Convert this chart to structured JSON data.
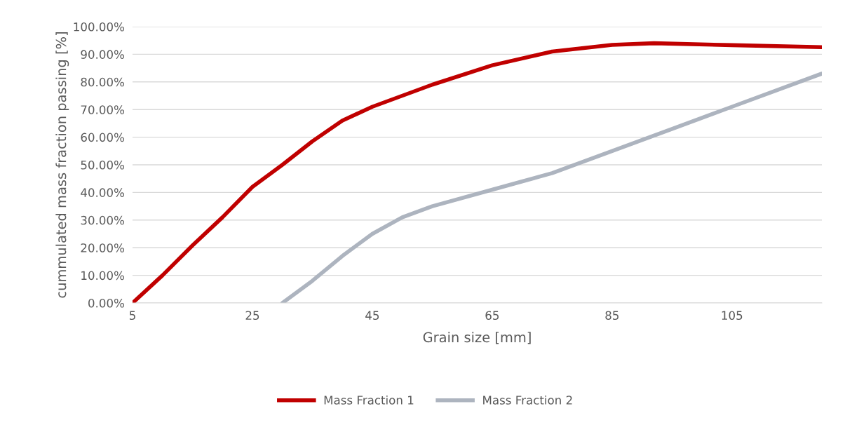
{
  "chart_data": {
    "type": "line",
    "xlabel": "Grain size [mm]",
    "ylabel": "cummulated mass fraction passing [%]",
    "xlim": [
      5,
      120
    ],
    "xticks": [
      5,
      25,
      45,
      65,
      85,
      105
    ],
    "ylim": [
      0,
      100
    ],
    "yticks": [
      {
        "value": 0,
        "label": "0.00%"
      },
      {
        "value": 10,
        "label": "10.00%"
      },
      {
        "value": 20,
        "label": "20.00%"
      },
      {
        "value": 30,
        "label": "30.00%"
      },
      {
        "value": 40,
        "label": "40.00%"
      },
      {
        "value": 50,
        "label": "50.00%"
      },
      {
        "value": 60,
        "label": "60.00%"
      },
      {
        "value": 70,
        "label": "70.00%"
      },
      {
        "value": 80,
        "label": "80.00%"
      },
      {
        "value": 90,
        "label": "90.00%"
      },
      {
        "value": 100,
        "label": "100.00%"
      }
    ],
    "grid": "y",
    "legend": "bottom",
    "marker": "none",
    "line_style": "solid",
    "series": [
      {
        "name": "Mass Fraction 1",
        "color": "#c00000",
        "x": [
          5,
          10,
          15,
          20,
          25,
          30,
          35,
          40,
          45,
          55,
          65,
          75,
          85,
          92,
          105,
          120
        ],
        "values": [
          0,
          10,
          20.8,
          31,
          42,
          50,
          58.5,
          66,
          71,
          79,
          86,
          91,
          93.4,
          94,
          93.3,
          92.6
        ]
      },
      {
        "name": "Mass Fraction 2",
        "color": "#adb4bf",
        "x": [
          30,
          35,
          40,
          45,
          50,
          55,
          65,
          75,
          85,
          95,
          105,
          120
        ],
        "values": [
          0,
          8,
          17,
          25,
          31,
          35,
          41,
          47,
          55,
          63,
          71,
          83
        ]
      }
    ]
  }
}
